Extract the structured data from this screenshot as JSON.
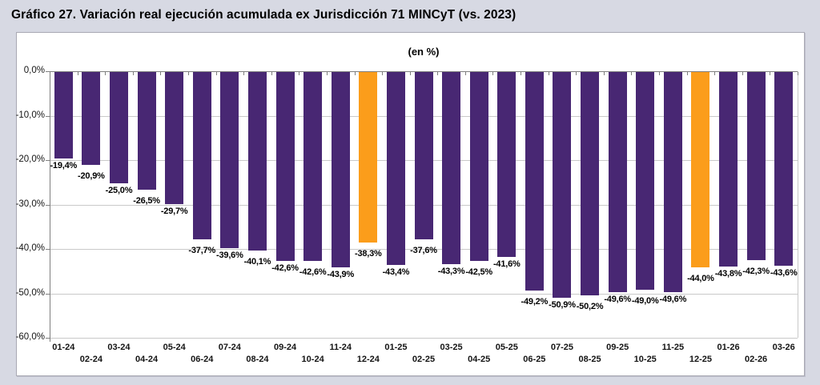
{
  "page": {
    "title": "Gráfico 27. Variación real ejecución acumulada ex Jurisdicción 71 MINCyT (vs. 2023)"
  },
  "chart_data": {
    "type": "bar",
    "title": "Gráfico 27. Variación real ejecución acumulada ex Jurisdicción 71 MINCyT (vs. 2023)",
    "subtitle": "(en %)",
    "xlabel": "",
    "ylabel": "",
    "categories": [
      "01-24",
      "02-24",
      "03-24",
      "04-24",
      "05-24",
      "06-24",
      "07-24",
      "08-24",
      "09-24",
      "10-24",
      "11-24",
      "12-24",
      "01-25",
      "02-25",
      "03-25",
      "04-25",
      "05-25",
      "06-25",
      "07-25",
      "08-25",
      "09-25",
      "10-25",
      "11-25",
      "12-25",
      "01-26",
      "02-26",
      "03-26"
    ],
    "values": [
      -19.4,
      -20.9,
      -25.0,
      -26.5,
      -29.7,
      -37.7,
      -39.6,
      -40.1,
      -42.6,
      -42.6,
      -43.9,
      -38.3,
      -43.4,
      -37.6,
      -43.3,
      -42.5,
      -41.6,
      -49.2,
      -50.9,
      -50.2,
      -49.6,
      -49.0,
      -49.6,
      -44.0,
      -43.8,
      -42.3,
      -43.6
    ],
    "value_labels": [
      "-19,4%",
      "-20,9%",
      "-25,0%",
      "-26,5%",
      "-29,7%",
      "-37,7%",
      "-39,6%",
      "-40,1%",
      "-42,6%",
      "-42,6%",
      "-43,9%",
      "-38,3%",
      "-43,4%",
      "-37,6%",
      "-43,3%",
      "-42,5%",
      "-41,6%",
      "-49,2%",
      "-50,9%",
      "-50,2%",
      "-49,6%",
      "-49,0%",
      "-49,6%",
      "-44,0%",
      "-43,8%",
      "-42,3%",
      "-43,6%"
    ],
    "y_tick_labels": [
      "0,0%",
      "-10,0%",
      "-20,0%",
      "-30,0%",
      "-40,0%",
      "-50,0%",
      "-60,0%"
    ],
    "ylim": [
      -60,
      0
    ],
    "grid": true,
    "legend": "none",
    "bar_color": "#482773",
    "highlight_color": "#fb9d1b",
    "highlight_indices": [
      11,
      23
    ]
  }
}
